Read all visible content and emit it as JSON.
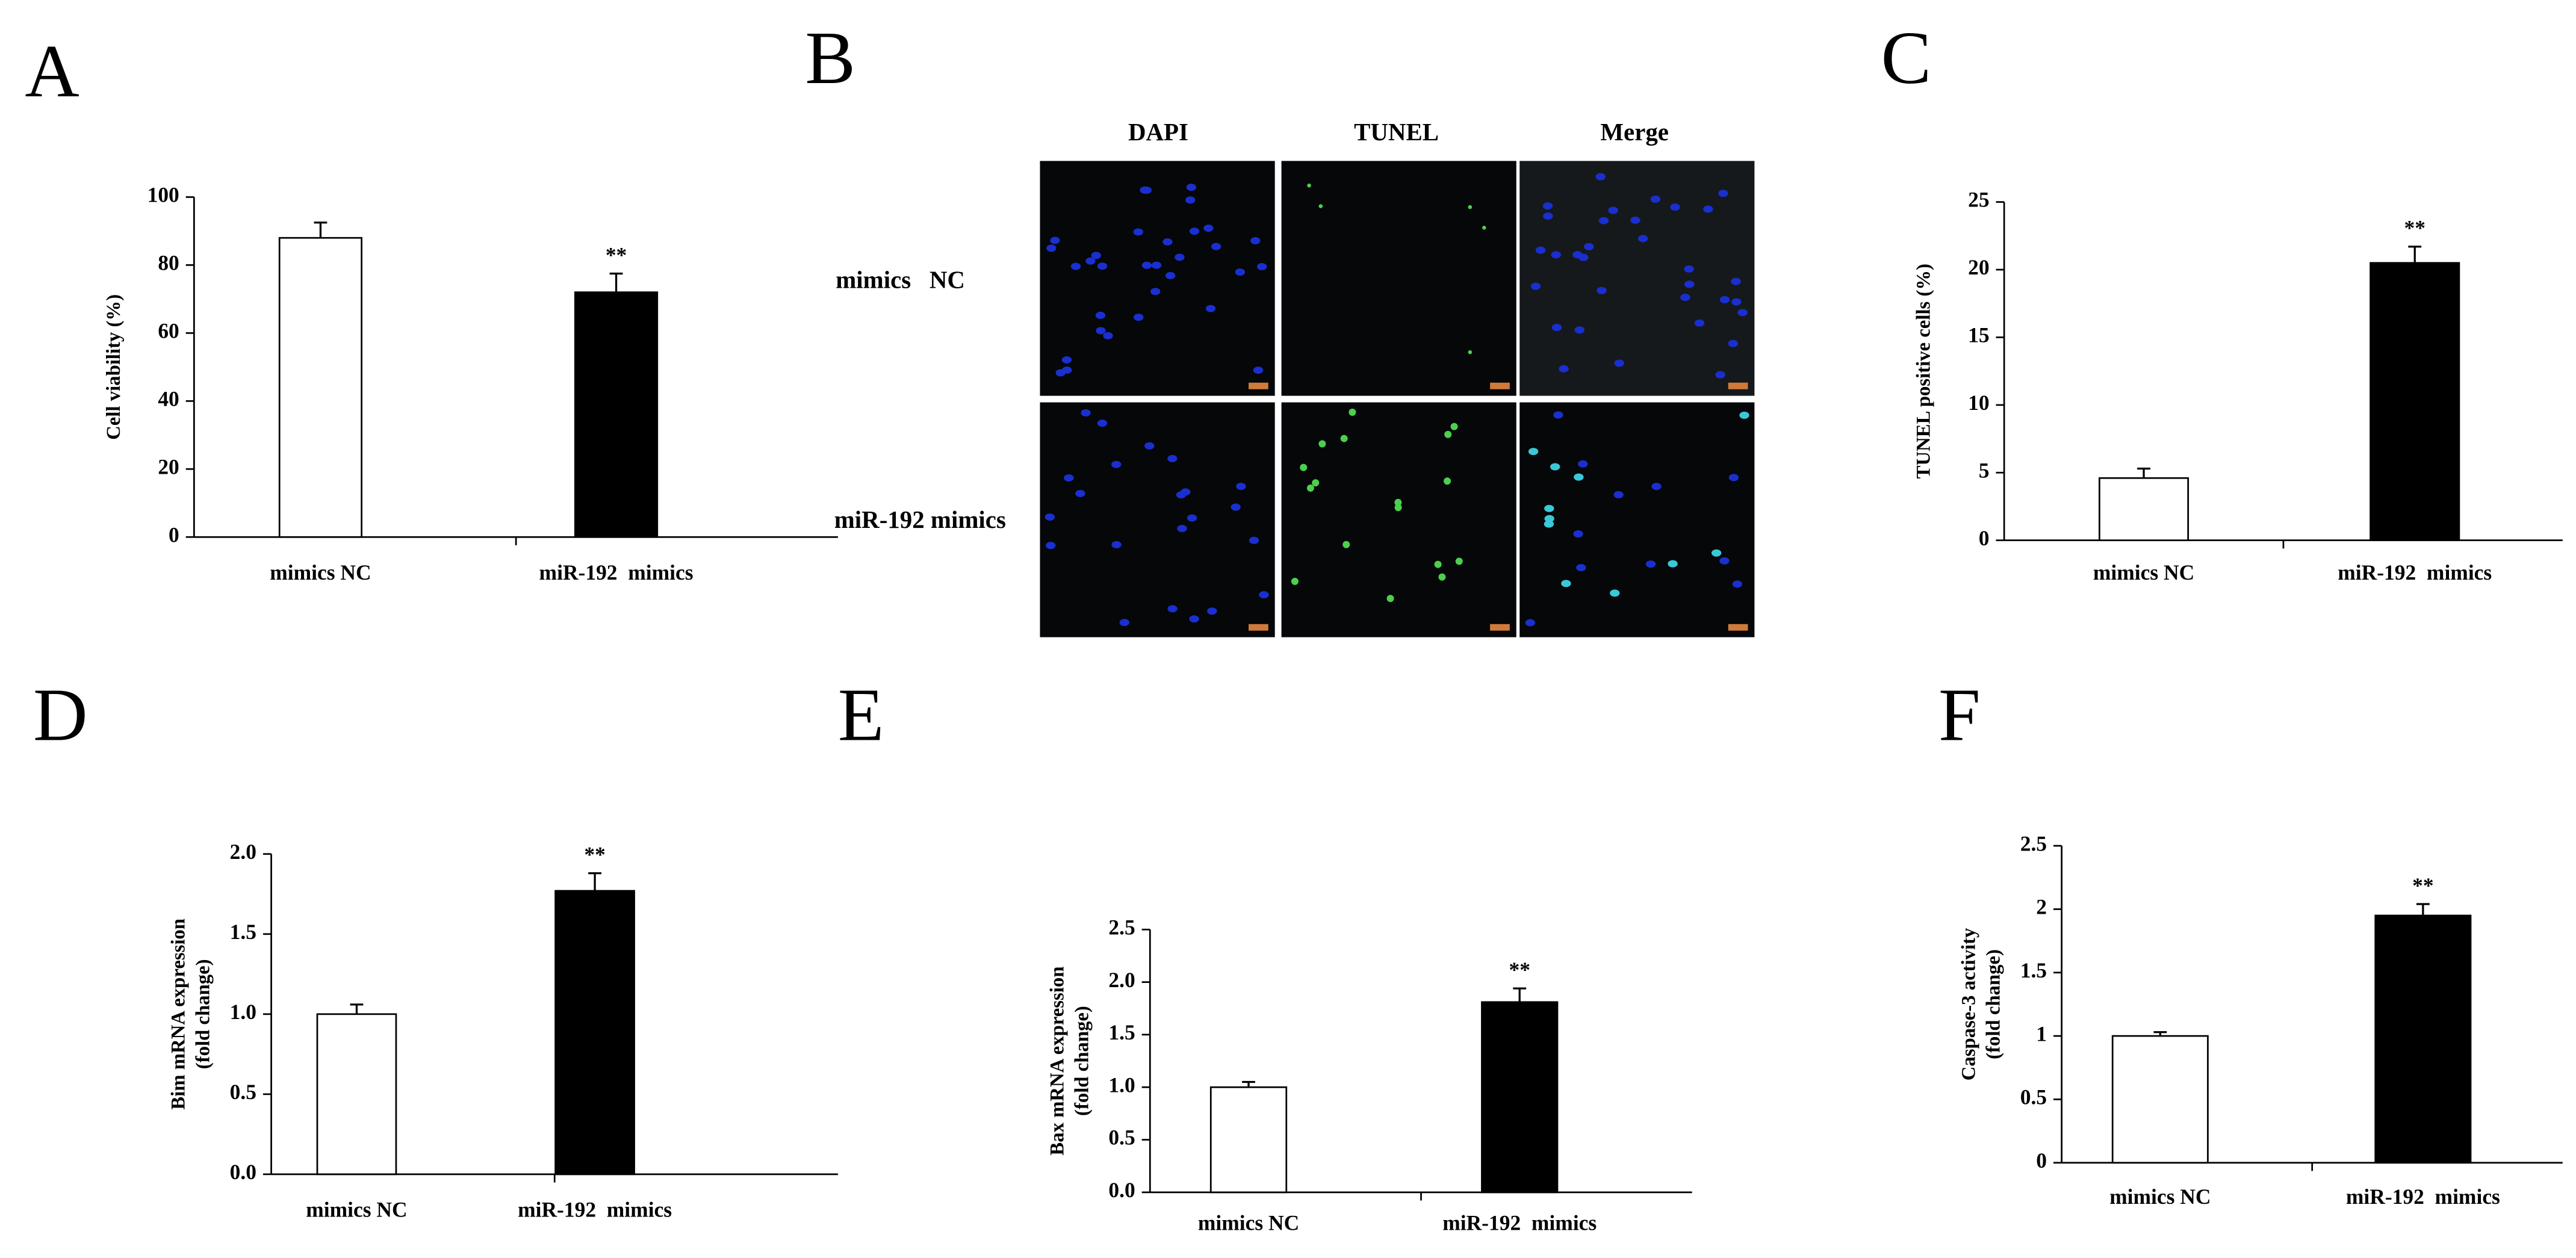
{
  "chart_data": [
    {
      "type": "bar",
      "panel": "A",
      "ylabel": [
        "Cell viability (%)"
      ],
      "categories": [
        "mimics NC",
        "miR-192  mimics"
      ],
      "series": [
        {
          "colors": [
            "#ffffff",
            "#000000"
          ],
          "values": [
            88,
            72
          ],
          "errors": [
            4.5,
            5.5
          ]
        }
      ],
      "value_annotations": [
        null,
        "**"
      ],
      "ylim": [
        0,
        100
      ],
      "yticks": [
        0,
        20,
        40,
        60,
        80,
        100
      ]
    },
    {
      "type": "image",
      "panel": "B",
      "columns": [
        "DAPI",
        "TUNEL",
        "Merge"
      ],
      "rows": [
        "mimics   NC",
        "miR-192 mimics"
      ]
    },
    {
      "type": "bar",
      "panel": "C",
      "ylabel": [
        "TUNEL positive cells (%)"
      ],
      "categories": [
        "mimics NC",
        "miR-192  mimics"
      ],
      "series": [
        {
          "colors": [
            "#ffffff",
            "#000000"
          ],
          "values": [
            4.6,
            20.5
          ],
          "errors": [
            0.7,
            1.2
          ]
        }
      ],
      "value_annotations": [
        null,
        "**"
      ],
      "ylim": [
        0,
        25
      ],
      "yticks": [
        0,
        5,
        10,
        15,
        20,
        25
      ]
    },
    {
      "type": "bar",
      "panel": "D",
      "ylabel": [
        "Bim mRNA expression",
        "(fold change)"
      ],
      "categories": [
        "mimics NC",
        "miR-192  mimics"
      ],
      "series": [
        {
          "colors": [
            "#ffffff",
            "#000000"
          ],
          "values": [
            1.0,
            1.77
          ],
          "errors": [
            0.06,
            0.11
          ]
        }
      ],
      "value_annotations": [
        null,
        "**"
      ],
      "ylim": [
        0,
        2
      ],
      "yticks": [
        {
          "value": 0,
          "label": "0.0"
        },
        {
          "value": 0.5,
          "label": "0.5"
        },
        {
          "value": 1,
          "label": "1.0"
        },
        {
          "value": 1.5,
          "label": "1.5"
        },
        {
          "value": 2,
          "label": "2.0"
        }
      ]
    },
    {
      "type": "bar",
      "panel": "E",
      "ylabel": [
        "Bax mRNA expression",
        "(fold change)"
      ],
      "categories": [
        "mimics NC",
        "miR-192  mimics"
      ],
      "series": [
        {
          "colors": [
            "#ffffff",
            "#000000"
          ],
          "values": [
            1.0,
            1.81
          ],
          "errors": [
            0.05,
            0.13
          ]
        }
      ],
      "value_annotations": [
        null,
        "**"
      ],
      "ylim": [
        0,
        2.5
      ],
      "yticks": [
        {
          "value": 0,
          "label": "0.0"
        },
        {
          "value": 0.5,
          "label": "0.5"
        },
        {
          "value": 1,
          "label": "1.0"
        },
        {
          "value": 1.5,
          "label": "1.5"
        },
        {
          "value": 2,
          "label": "2.0"
        },
        {
          "value": 2.5,
          "label": "2.5"
        }
      ]
    },
    {
      "type": "bar",
      "panel": "F",
      "ylabel": [
        "Caspase-3 activity",
        "(fold change)"
      ],
      "categories": [
        "mimics NC",
        "miR-192  mimics"
      ],
      "series": [
        {
          "colors": [
            "#ffffff",
            "#000000"
          ],
          "values": [
            1.0,
            1.95
          ],
          "errors": [
            0.03,
            0.09
          ]
        }
      ],
      "value_annotations": [
        null,
        "**"
      ],
      "ylim": [
        0,
        2.5
      ],
      "yticks": [
        0,
        0.5,
        1,
        1.5,
        2,
        2.5
      ]
    }
  ]
}
